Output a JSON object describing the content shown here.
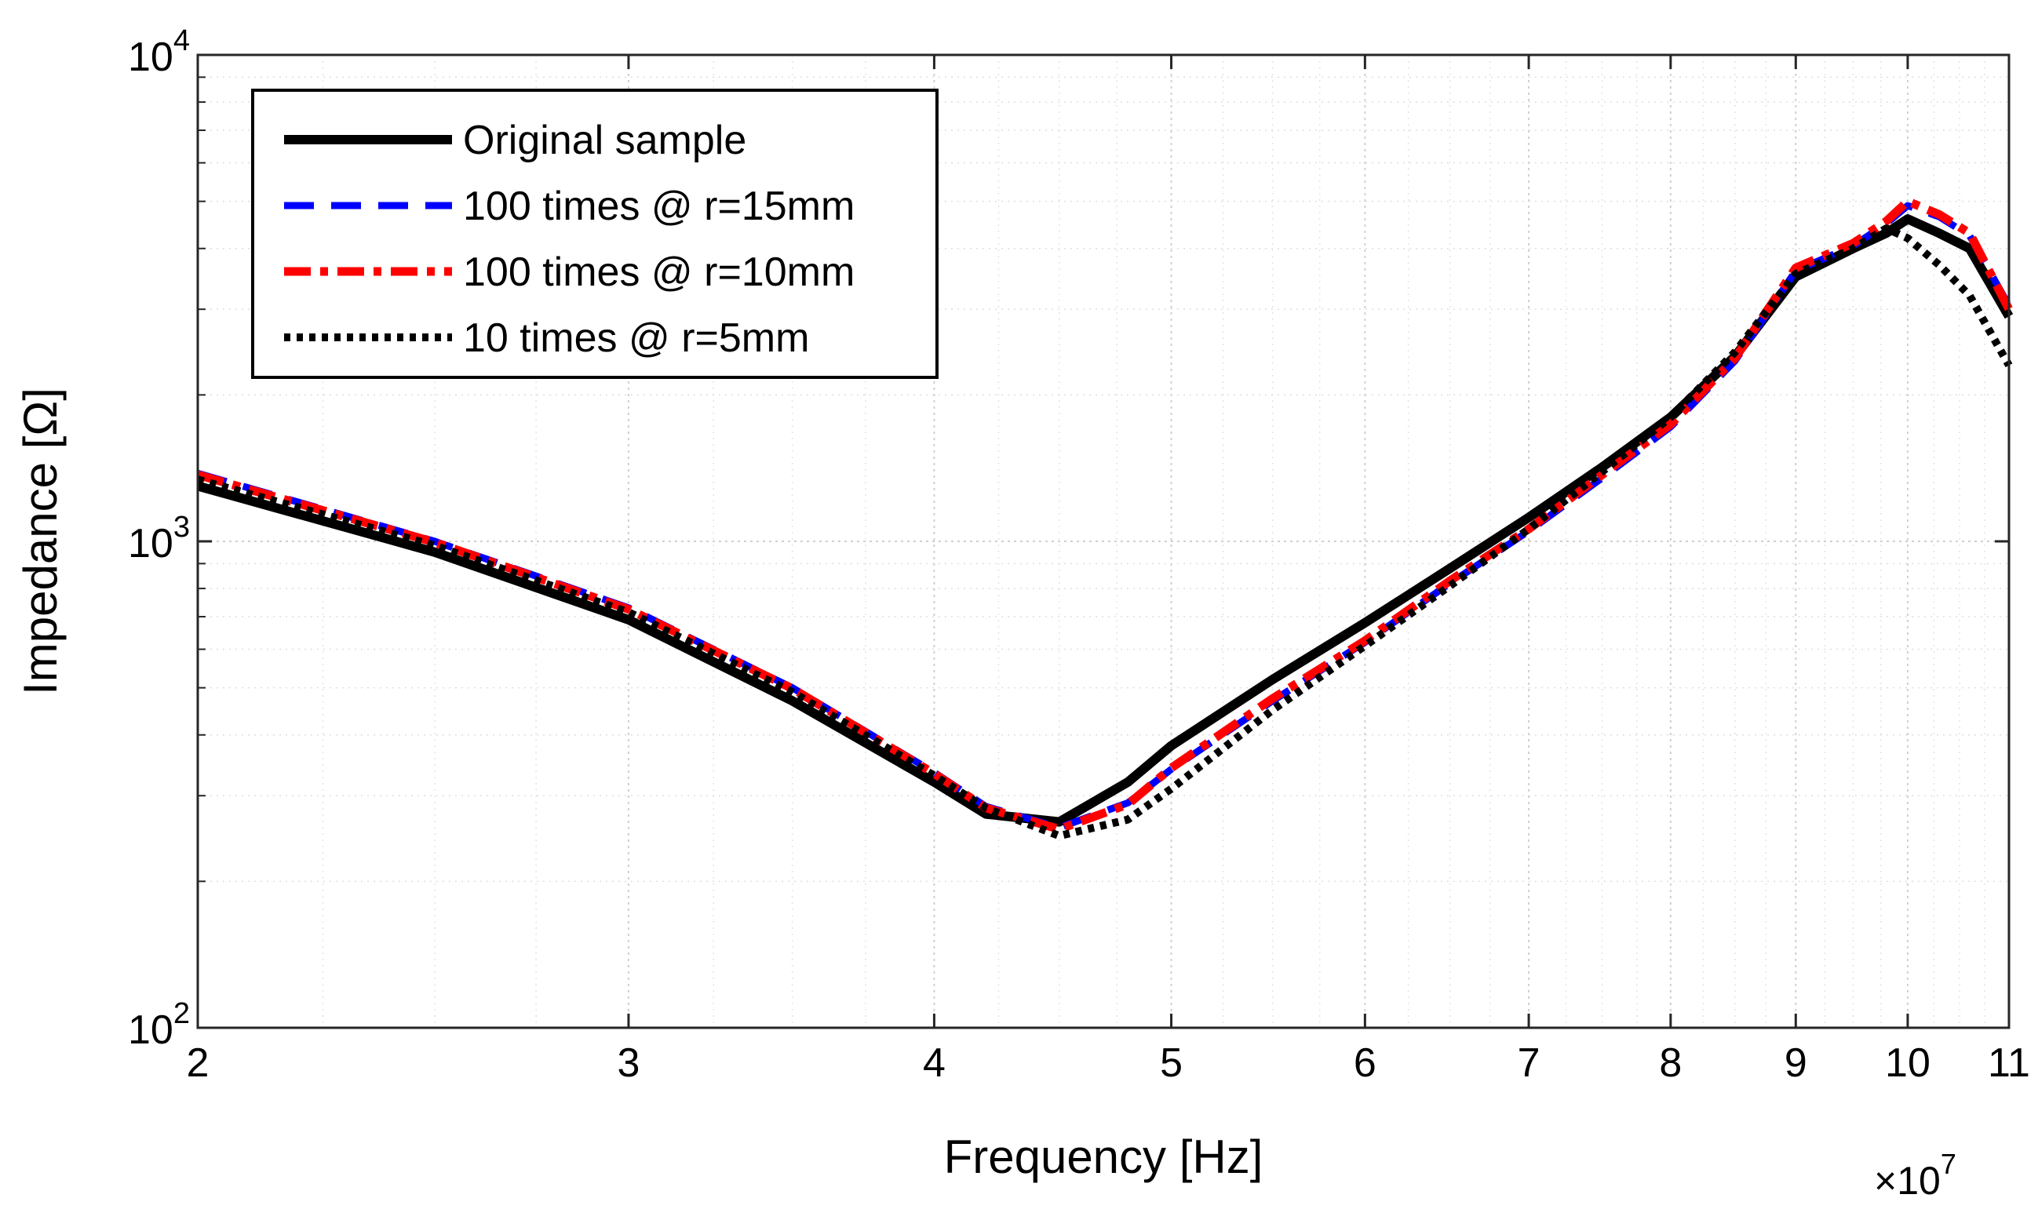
{
  "chart_data": {
    "type": "line",
    "xscale": "log",
    "yscale": "log",
    "xlabel": "Frequency [Hz]",
    "ylabel": "Impedance [Ω]",
    "x_multiplier_label": {
      "base": "×10",
      "exponent": "7"
    },
    "xlim": [
      2,
      11
    ],
    "ylim": [
      100,
      10000
    ],
    "x_ticks": [
      2,
      3,
      4,
      5,
      6,
      7,
      8,
      9,
      10,
      11
    ],
    "x_tick_labels": [
      "2",
      "3",
      "4",
      "5",
      "6",
      "7",
      "8",
      "9",
      "10",
      "11"
    ],
    "y_ticks": [
      {
        "value": 100,
        "base": "10",
        "exp": "2"
      },
      {
        "value": 1000,
        "base": "10",
        "exp": "3"
      },
      {
        "value": 10000,
        "base": "10",
        "exp": "4"
      }
    ],
    "grid": true,
    "legend_position": "top-left",
    "series": [
      {
        "name": "Original sample",
        "color": "#000000",
        "dash": "solid",
        "x": [
          2.0,
          2.5,
          3.0,
          3.5,
          4.0,
          4.2,
          4.5,
          4.8,
          5.0,
          5.5,
          6.0,
          6.5,
          7.0,
          7.5,
          8.0,
          8.5,
          9.0,
          9.5,
          9.8,
          10.0,
          10.3,
          10.6,
          11.0
        ],
        "y": [
          1300,
          950,
          690,
          470,
          320,
          275,
          265,
          320,
          380,
          520,
          680,
          880,
          1120,
          1420,
          1800,
          2400,
          3500,
          4000,
          4300,
          4600,
          4300,
          4000,
          2900
        ]
      },
      {
        "name": "100 times @ r=15mm",
        "color": "#0000ff",
        "dash": "dashed",
        "x": [
          2.0,
          2.5,
          3.0,
          3.5,
          4.0,
          4.2,
          4.5,
          4.8,
          5.0,
          5.5,
          6.0,
          6.5,
          7.0,
          7.5,
          8.0,
          8.5,
          9.0,
          9.5,
          9.8,
          10.0,
          10.3,
          10.6,
          11.0
        ],
        "y": [
          1380,
          1000,
          730,
          500,
          335,
          285,
          258,
          290,
          340,
          470,
          620,
          820,
          1050,
          1350,
          1720,
          2350,
          3600,
          4050,
          4500,
          4900,
          4650,
          4250,
          3050
        ]
      },
      {
        "name": "100 times @ r=10mm",
        "color": "#ff0000",
        "dash": "dashdot",
        "x": [
          2.0,
          2.5,
          3.0,
          3.5,
          4.0,
          4.2,
          4.5,
          4.8,
          5.0,
          5.5,
          6.0,
          6.5,
          7.0,
          7.5,
          8.0,
          8.5,
          9.0,
          9.5,
          9.8,
          10.0,
          10.3,
          10.6,
          11.0
        ],
        "y": [
          1370,
          995,
          725,
          498,
          333,
          283,
          256,
          288,
          342,
          475,
          625,
          830,
          1060,
          1370,
          1740,
          2380,
          3650,
          4100,
          4550,
          5000,
          4700,
          4300,
          3000
        ]
      },
      {
        "name": "10 times @ r=5mm",
        "color": "#000000",
        "dash": "dotted",
        "x": [
          2.0,
          2.5,
          3.0,
          3.5,
          4.0,
          4.2,
          4.5,
          4.8,
          5.0,
          5.5,
          6.0,
          6.5,
          7.0,
          7.5,
          8.0,
          8.5,
          9.0,
          9.5,
          9.8,
          10.0,
          10.3,
          10.6,
          11.0
        ],
        "y": [
          1340,
          980,
          715,
          490,
          330,
          283,
          248,
          268,
          310,
          450,
          610,
          810,
          1060,
          1390,
          1800,
          2450,
          3550,
          4000,
          4400,
          4200,
          3700,
          3200,
          2300
        ]
      }
    ]
  }
}
